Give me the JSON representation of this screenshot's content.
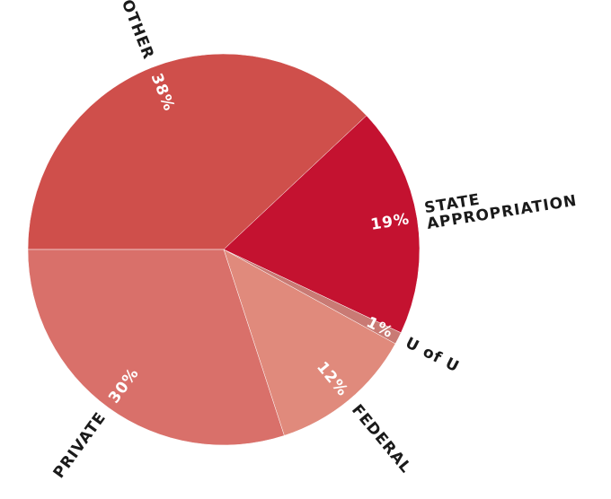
{
  "chart_data": {
    "type": "pie",
    "categories": [
      "OTHER",
      "STATE APPROPRIATION",
      "U of U",
      "FEDERAL",
      "PRIVATE"
    ],
    "values": [
      38,
      19,
      1,
      12,
      30
    ],
    "value_labels": [
      "38%",
      "19%",
      "1%",
      "12%",
      "30%"
    ],
    "colors": [
      "#cf4f4b",
      "#c41230",
      "#c97a74",
      "#e08a7c",
      "#d9706a"
    ],
    "start_angle": 270,
    "direction": "clockwise"
  }
}
